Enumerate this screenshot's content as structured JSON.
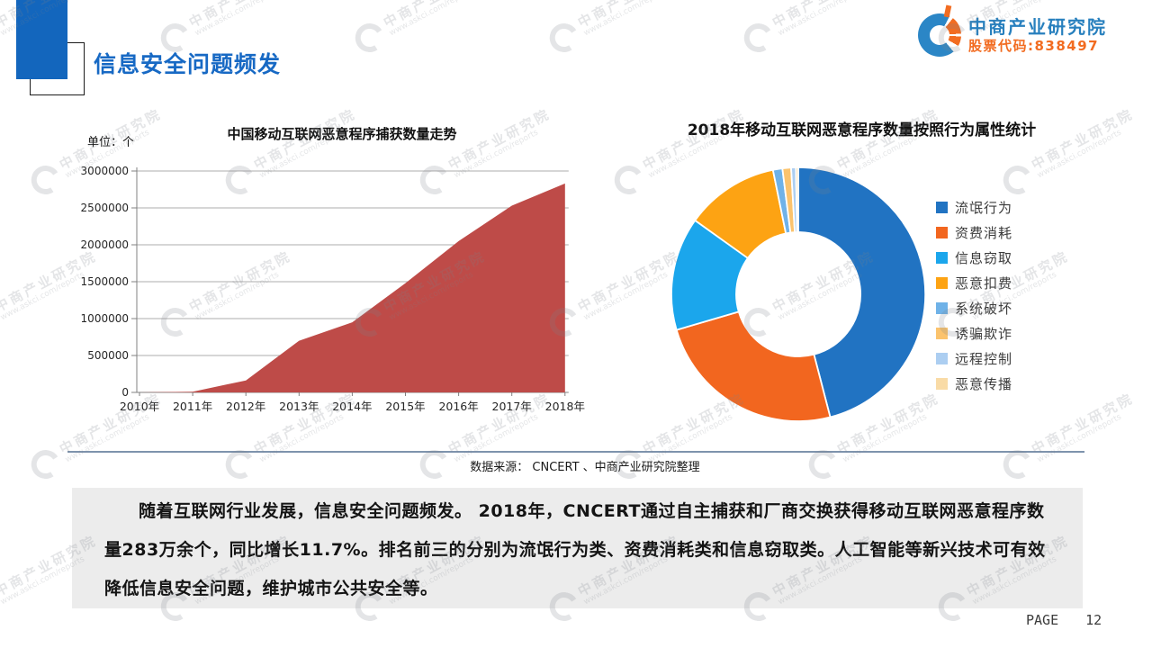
{
  "header": {
    "title": "信息安全问题频发",
    "logo": {
      "company": "中商产业研究院",
      "stock_code": "股票代码:838497"
    }
  },
  "watermark": {
    "line1": "中商产业研究院",
    "line2": "www.askci.com/reports"
  },
  "chart_data": [
    {
      "type": "area",
      "title": "中国移动互联网恶意程序捕获数量走势",
      "unit_label": "单位：个",
      "xlabel": "",
      "ylabel": "",
      "categories": [
        "2010年",
        "2011年",
        "2012年",
        "2013年",
        "2014年",
        "2015年",
        "2016年",
        "2017年",
        "2018年"
      ],
      "values": [
        0,
        10000,
        162000,
        700000,
        950000,
        1480000,
        2050000,
        2530000,
        2830000
      ],
      "ylim": [
        0,
        3000000
      ],
      "ytick_interval": 500000,
      "grid": true,
      "area_color": "#be4b48",
      "axis_color": "#808080",
      "grid_color": "#adadad"
    },
    {
      "type": "pie",
      "subtype": "donut",
      "title": "2018年移动互联网恶意程序数量按照行为属性统计",
      "labels": [
        "流氓行为",
        "资费消耗",
        "信息窃取",
        "恶意扣费",
        "系统破坏",
        "诱骗欺诈",
        "远程控制",
        "恶意传播"
      ],
      "values": [
        45.9,
        24.5,
        14.4,
        11.9,
        1.2,
        1.1,
        0.6,
        0.3
      ],
      "unit": "percent",
      "colors": [
        "#2173c2",
        "#f2661f",
        "#1ba6ec",
        "#fda313",
        "#6fb2e8",
        "#fbc36d",
        "#accef1",
        "#f9dba6"
      ],
      "legend_position": "right"
    }
  ],
  "source_line": "数据来源：  CNCERT 、中商产业研究院整理",
  "paragraph": "随着互联网行业发展，信息安全问题频发。 2018年，CNCERT通过自主捕获和厂商交换获得移动互联网恶意程序数量283万余个，同比增长11.7%。排名前三的分别为流氓行为类、资费消耗类和信息窃取类。人工智能等新兴技术可有效降低信息安全问题，维护城市公共安全等。",
  "footer": {
    "page_label": "PAGE",
    "page_number": "12"
  }
}
